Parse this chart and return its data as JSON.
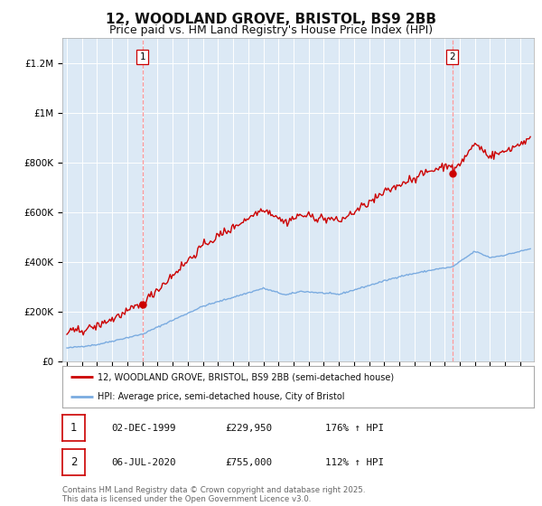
{
  "title": "12, WOODLAND GROVE, BRISTOL, BS9 2BB",
  "subtitle": "Price paid vs. HM Land Registry's House Price Index (HPI)",
  "title_fontsize": 11,
  "subtitle_fontsize": 9,
  "background_color": "#dce9f5",
  "plot_bg_color": "#dce9f5",
  "fig_bg_color": "#ffffff",
  "red_line_color": "#cc0000",
  "blue_line_color": "#7aabe0",
  "ylim": [
    0,
    1300000
  ],
  "yticks": [
    0,
    200000,
    400000,
    600000,
    800000,
    1000000,
    1200000
  ],
  "ytick_labels": [
    "£0",
    "£200K",
    "£400K",
    "£600K",
    "£800K",
    "£1M",
    "£1.2M"
  ],
  "legend_red": "12, WOODLAND GROVE, BRISTOL, BS9 2BB (semi-detached house)",
  "legend_blue": "HPI: Average price, semi-detached house, City of Bristol",
  "sale1_date": "02-DEC-1999",
  "sale1_price": 229950,
  "sale1_label": "1",
  "sale1_hpi": "176% ↑ HPI",
  "sale2_date": "06-JUL-2020",
  "sale2_price": 755000,
  "sale2_label": "2",
  "sale2_hpi": "112% ↑ HPI",
  "footnote": "Contains HM Land Registry data © Crown copyright and database right 2025.\nThis data is licensed under the Open Government Licence v3.0.",
  "sale1_x": 2000.0,
  "sale2_x": 2020.5,
  "grid_color": "#ffffff",
  "dashed_line_color": "#ff9999"
}
